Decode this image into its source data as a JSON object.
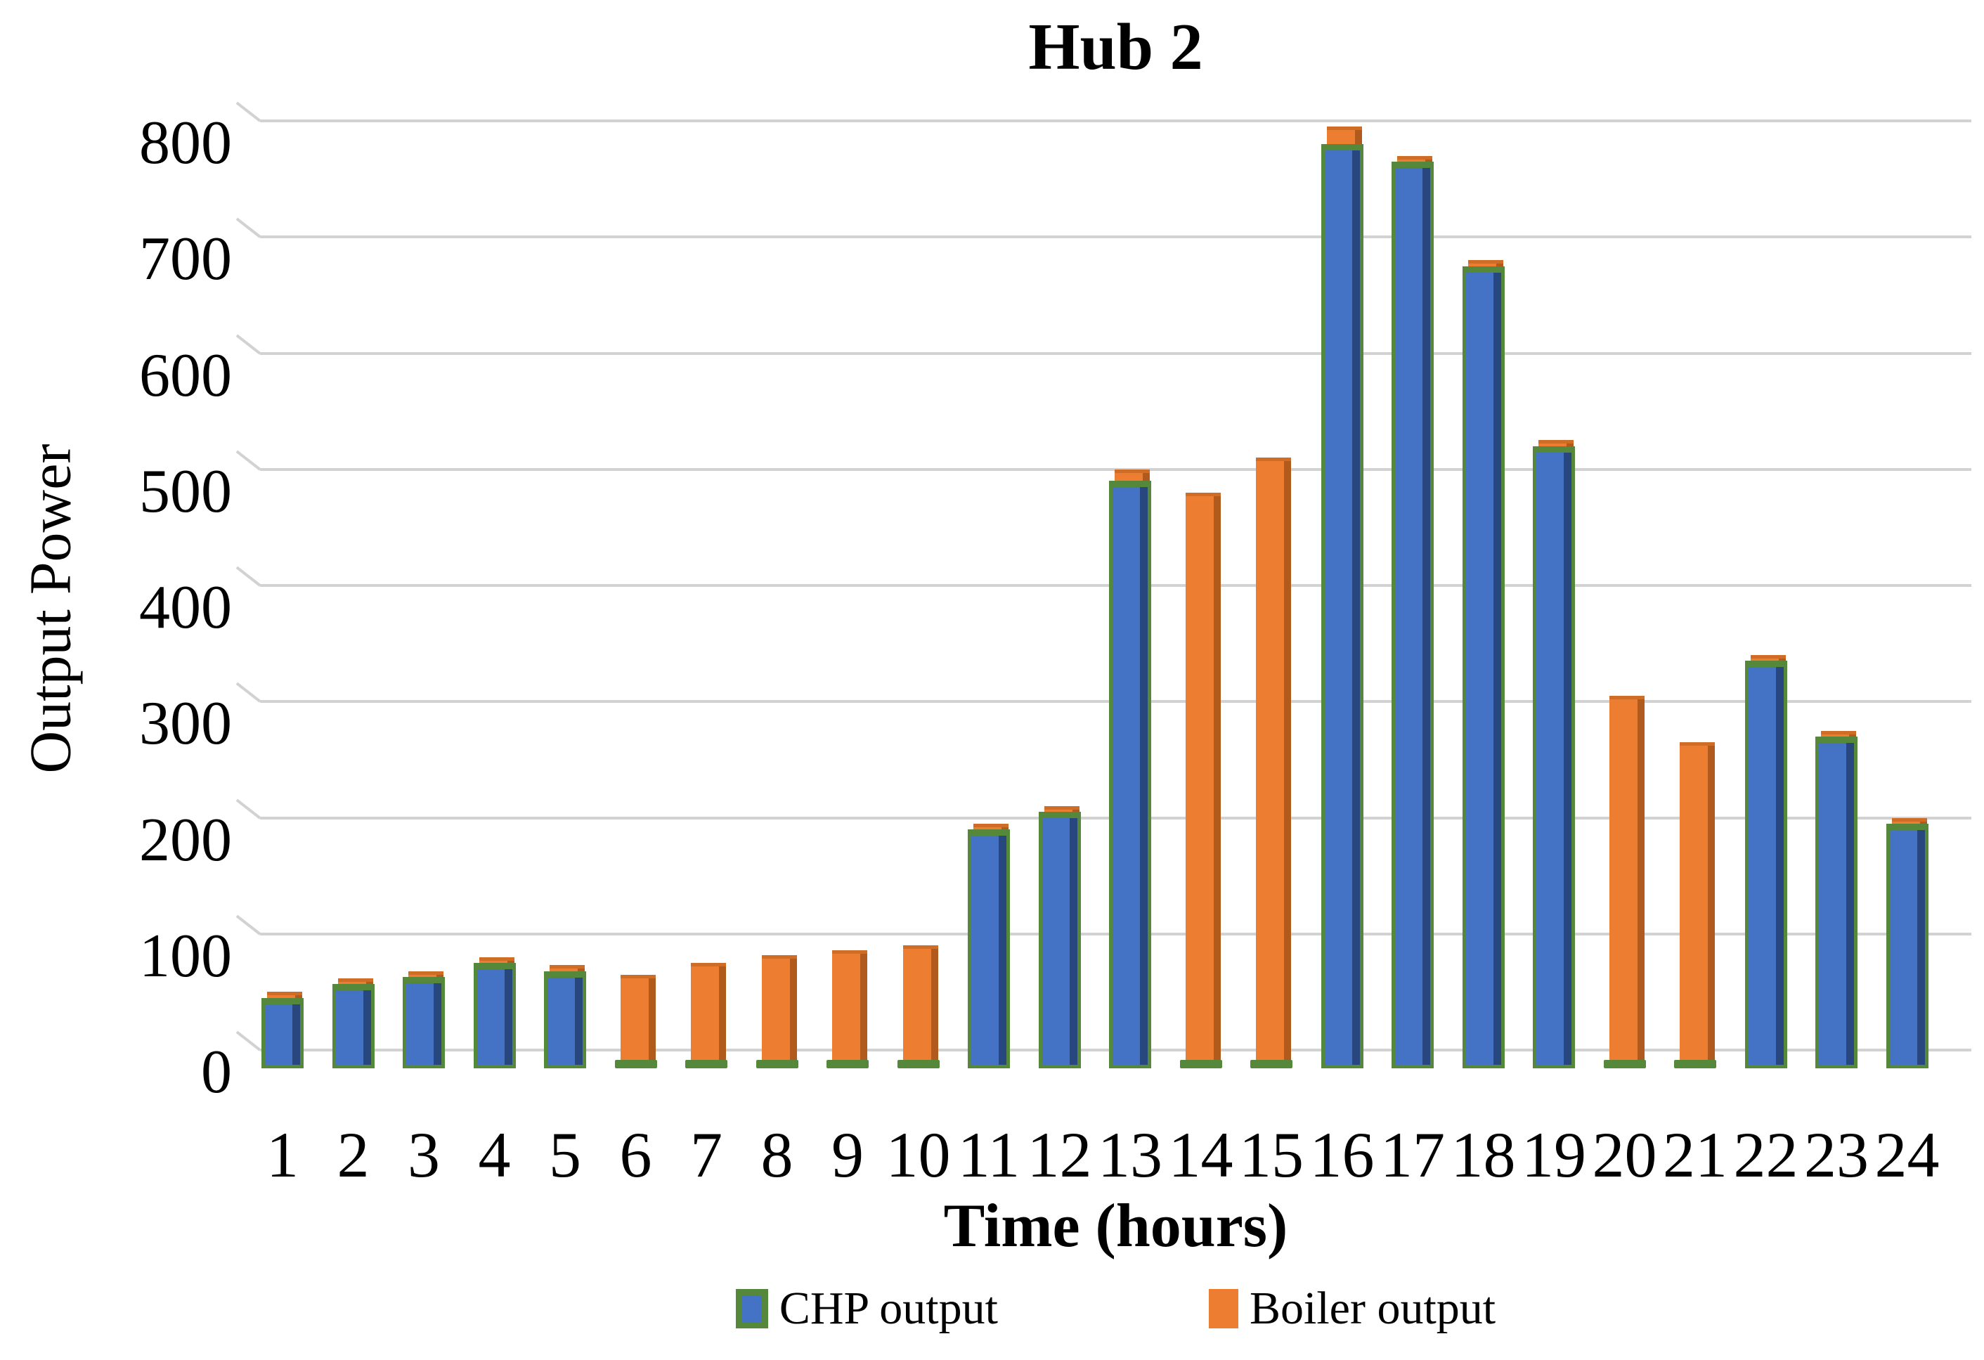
{
  "chart_data": {
    "type": "bar",
    "style": "3d-clustered-column-with-series-depth",
    "title": "Hub 2",
    "xlabel": "Time (hours)",
    "ylabel": "Output Power",
    "ylim": [
      0,
      800
    ],
    "ytick_step": 100,
    "y_ticks": [
      "0",
      "100",
      "200",
      "300",
      "400",
      "500",
      "600",
      "700",
      "800"
    ],
    "categories": [
      "1",
      "2",
      "3",
      "4",
      "5",
      "6",
      "7",
      "8",
      "9",
      "10",
      "11",
      "12",
      "13",
      "14",
      "15",
      "16",
      "17",
      "18",
      "19",
      "20",
      "21",
      "22",
      "23",
      "24"
    ],
    "grid": true,
    "legend_position": "bottom",
    "series": [
      {
        "name": "CHP output",
        "fill": "#4472c4",
        "edge": "#55883b",
        "side": "#27477e",
        "values": [
          45,
          57,
          63,
          75,
          68,
          0,
          0,
          0,
          0,
          0,
          190,
          205,
          490,
          0,
          0,
          780,
          765,
          675,
          520,
          0,
          0,
          335,
          270,
          195
        ]
      },
      {
        "name": "Boiler output",
        "fill": "#ed7d31",
        "edge": "#cf6d26",
        "side": "#b05a1d",
        "values": [
          50,
          62,
          68,
          80,
          73,
          65,
          75,
          82,
          86,
          90,
          195,
          210,
          500,
          480,
          510,
          795,
          770,
          680,
          525,
          305,
          265,
          340,
          275,
          200
        ]
      }
    ],
    "colors": {
      "grid": "#d2d2d2",
      "text": "#000000",
      "background": "#ffffff"
    }
  }
}
